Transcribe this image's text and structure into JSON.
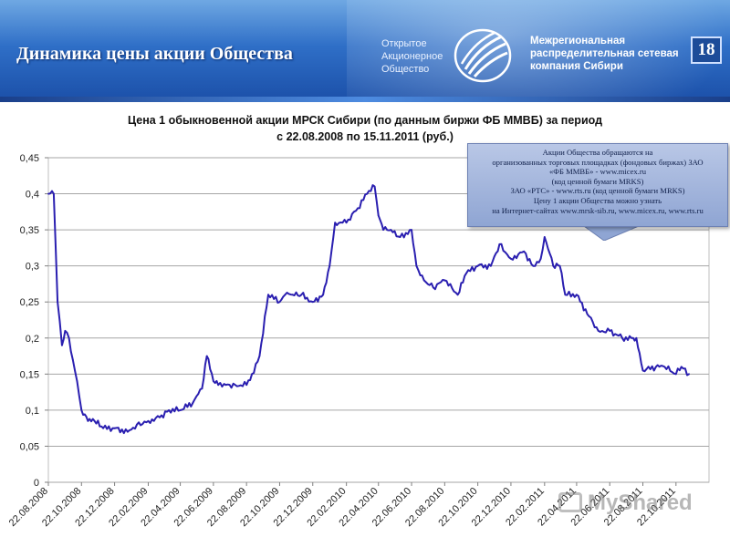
{
  "header": {
    "slide_title": "Динамика цены акции Общества",
    "logo_left": [
      "Открытое",
      "Акционерное",
      "Общество"
    ],
    "logo_right": [
      "Межрегиональная",
      "распределительная сетевая",
      "компания Сибири"
    ],
    "page_number": "18",
    "colors": {
      "header_top": "#6fa8e3",
      "header_bottom": "#1b4fa8",
      "line": "#2a1fb0"
    }
  },
  "callout": {
    "lines": [
      "Акции Общества обращаются на",
      "организованных торговых площадках (фондовых биржах) ЗАО",
      "«ФБ ММВБ» - www.micex.ru",
      "(код ценной бумаги MRKS)",
      "ЗАО «РТС» - www.rts.ru (код ценной бумаги MRKS)",
      "Цену 1 акции Общества можно узнать",
      "на Интернет-сайтах www.mrsk-sib.ru, www.micex.ru, www.rts.ru"
    ]
  },
  "watermark": {
    "text": "MyShared"
  },
  "chart_data": {
    "type": "line",
    "title_lines": [
      "Цена 1 обыкновенной акции МРСК Сибири (по данным биржи ФБ ММВБ) за период",
      "с 22.08.2008 по 15.11.2011 (руб.)"
    ],
    "ylim": [
      0,
      0.45
    ],
    "y_ticks": [
      "0",
      "0,05",
      "0,1",
      "0,15",
      "0,2",
      "0,25",
      "0,3",
      "0,35",
      "0,4",
      "0,45"
    ],
    "x_ticks": [
      "22.08.2008",
      "22.10.2008",
      "22.12.2008",
      "22.02.2009",
      "22.04.2009",
      "22.06.2009",
      "22.08.2009",
      "22.10.2009",
      "22.12.2009",
      "22.02.2010",
      "22.04.2010",
      "22.06.2010",
      "22.08.2010",
      "22.10.2010",
      "22.12.2010",
      "22.02.2011",
      "22.04.2011",
      "22.06.2011",
      "22.08.2011",
      "22.10.2011"
    ],
    "grid": true,
    "series": [
      {
        "x": [
          "22.08.2008",
          "01.09.2008",
          "08.09.2008",
          "16.09.2008",
          "22.09.2008",
          "29.09.2008",
          "06.10.2008",
          "14.10.2008",
          "22.10.2008",
          "03.11.2008",
          "15.11.2008",
          "01.12.2008",
          "22.12.2008",
          "15.01.2009",
          "01.02.2009",
          "22.02.2009",
          "15.03.2009",
          "01.04.2009",
          "22.04.2009",
          "15.05.2009",
          "01.06.2009",
          "10.06.2009",
          "22.06.2009",
          "01.07.2009",
          "15.07.2009",
          "01.08.2009",
          "22.08.2009",
          "01.09.2009",
          "15.09.2009",
          "01.10.2009",
          "22.10.2009",
          "01.11.2009",
          "15.11.2009",
          "01.12.2009",
          "22.12.2009",
          "10.01.2010",
          "22.01.2010",
          "01.02.2010",
          "22.02.2010",
          "15.03.2010",
          "01.04.2010",
          "15.04.2010",
          "22.04.2010",
          "01.05.2010",
          "15.05.2010",
          "01.06.2010",
          "22.06.2010",
          "01.07.2010",
          "15.07.2010",
          "01.08.2010",
          "22.08.2010",
          "15.09.2010",
          "01.10.2010",
          "22.10.2010",
          "15.11.2010",
          "01.12.2010",
          "22.12.2010",
          "15.01.2011",
          "01.02.2011",
          "15.02.2011",
          "22.02.2011",
          "10.03.2011",
          "22.03.2011",
          "01.04.2011",
          "22.04.2011",
          "15.05.2011",
          "01.06.2011",
          "22.06.2011",
          "15.07.2011",
          "01.08.2011",
          "10.08.2011",
          "22.08.2011",
          "15.09.2011",
          "01.10.2011",
          "22.10.2011",
          "01.11.2011",
          "15.11.2011"
        ],
        "y": [
          0.4,
          0.4,
          0.25,
          0.19,
          0.21,
          0.2,
          0.17,
          0.14,
          0.1,
          0.085,
          0.085,
          0.075,
          0.075,
          0.07,
          0.08,
          0.085,
          0.09,
          0.1,
          0.1,
          0.11,
          0.13,
          0.175,
          0.14,
          0.135,
          0.135,
          0.135,
          0.135,
          0.15,
          0.175,
          0.26,
          0.25,
          0.26,
          0.26,
          0.26,
          0.25,
          0.26,
          0.3,
          0.36,
          0.36,
          0.38,
          0.4,
          0.41,
          0.37,
          0.35,
          0.35,
          0.34,
          0.35,
          0.3,
          0.28,
          0.27,
          0.28,
          0.26,
          0.29,
          0.3,
          0.3,
          0.33,
          0.31,
          0.32,
          0.3,
          0.31,
          0.34,
          0.3,
          0.3,
          0.26,
          0.26,
          0.23,
          0.21,
          0.21,
          0.2,
          0.2,
          0.2,
          0.155,
          0.16,
          0.16,
          0.15,
          0.16,
          0.15
        ]
      }
    ]
  }
}
